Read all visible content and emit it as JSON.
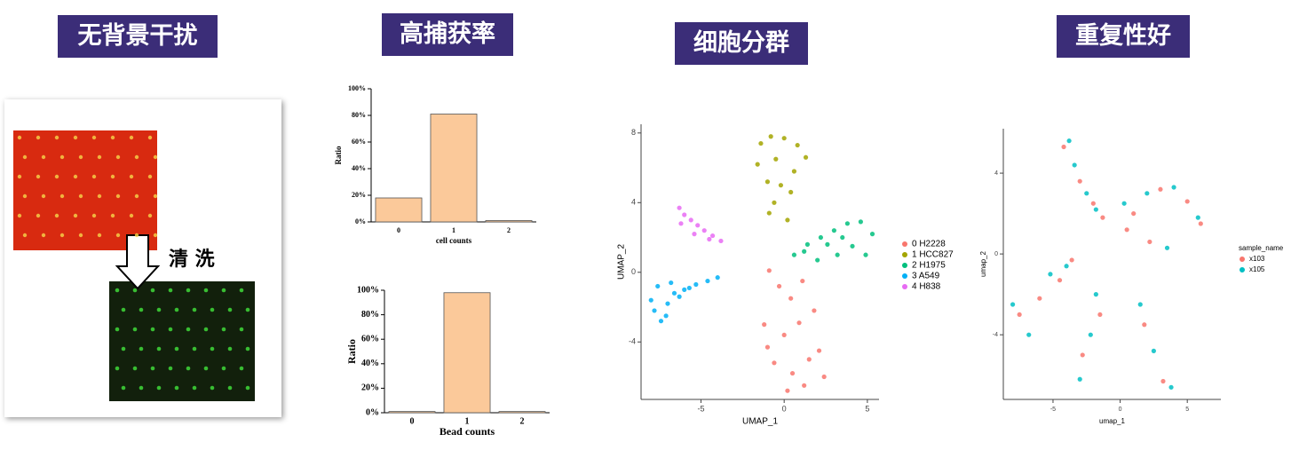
{
  "titles": [
    "无背景干扰",
    "高捕获率",
    "细胞分群",
    "重复性好"
  ],
  "wash_label": "清 洗",
  "chart_data": [
    {
      "type": "bar",
      "xlabel": "cell counts",
      "ylabel": "Ratio",
      "categories": [
        "0",
        "1",
        "2"
      ],
      "values": [
        18,
        81,
        1
      ],
      "color": "#fbc99a",
      "ylim": [
        0,
        100
      ],
      "yticks": [
        {
          "value": 0,
          "label": "0%"
        },
        {
          "value": 20,
          "label": "20%"
        },
        {
          "value": 40,
          "label": "40%"
        },
        {
          "value": 60,
          "label": "60%"
        },
        {
          "value": 80,
          "label": "80%"
        },
        {
          "value": 100,
          "label": "100%"
        }
      ]
    },
    {
      "type": "bar",
      "xlabel": "Bead counts",
      "ylabel": "Ratio",
      "categories": [
        "0",
        "1",
        "2"
      ],
      "values": [
        1,
        98,
        1
      ],
      "color": "#fbc99a",
      "ylim": [
        0,
        100
      ],
      "yticks": [
        {
          "value": 0,
          "label": "0%"
        },
        {
          "value": 20,
          "label": "20%"
        },
        {
          "value": 40,
          "label": "40%"
        },
        {
          "value": 60,
          "label": "60%"
        },
        {
          "value": 80,
          "label": "80%"
        },
        {
          "value": 100,
          "label": "100%"
        }
      ]
    },
    {
      "type": "scatter",
      "xlabel": "UMAP_1",
      "ylabel": "UMAP_2",
      "xlim": [
        -8.6,
        5.7
      ],
      "ylim": [
        -7.3,
        8.5
      ],
      "xticks": [
        -5,
        0,
        5
      ],
      "yticks": [
        -4,
        0,
        4,
        8
      ],
      "series": [
        {
          "name": "0 H2228",
          "color": "#f8766d",
          "x": [
            -0.9,
            -0.3,
            0.4,
            1.1,
            1.8,
            -1.2,
            0.0,
            0.9,
            2.1,
            -0.6,
            0.5,
            1.5,
            2.4,
            0.2,
            -1.0,
            1.2
          ],
          "y": [
            0.1,
            -0.8,
            -1.5,
            -0.5,
            -2.2,
            -3.0,
            -3.6,
            -2.9,
            -4.5,
            -5.2,
            -5.8,
            -5.0,
            -6.0,
            -6.8,
            -4.3,
            -6.5
          ]
        },
        {
          "name": "1 HCC827",
          "color": "#a3a500",
          "x": [
            -1.4,
            -0.8,
            0.0,
            0.8,
            1.3,
            -1.6,
            -0.5,
            0.6,
            -1.0,
            -0.2,
            0.4,
            -0.6,
            -0.9,
            0.2
          ],
          "y": [
            7.4,
            7.8,
            7.7,
            7.3,
            6.6,
            6.2,
            6.5,
            5.8,
            5.2,
            5.0,
            4.6,
            4.0,
            3.4,
            3.0
          ]
        },
        {
          "name": "2 H1975",
          "color": "#00bf7d",
          "x": [
            0.6,
            1.4,
            2.2,
            3.0,
            3.8,
            4.6,
            5.3,
            4.1,
            3.2,
            2.0,
            1.2,
            4.9,
            3.5,
            2.6
          ],
          "y": [
            1.0,
            1.6,
            2.0,
            2.4,
            2.8,
            2.9,
            2.2,
            1.5,
            1.0,
            0.7,
            1.2,
            1.0,
            2.0,
            1.6
          ]
        },
        {
          "name": "3 A549",
          "color": "#00b0f6",
          "x": [
            -8.0,
            -7.6,
            -7.1,
            -6.6,
            -6.0,
            -5.3,
            -4.6,
            -4.0,
            -7.8,
            -7.0,
            -6.3,
            -7.4,
            -5.7,
            -6.8
          ],
          "y": [
            -1.6,
            -0.8,
            -2.5,
            -1.2,
            -1.0,
            -0.7,
            -0.5,
            -0.3,
            -2.2,
            -1.8,
            -1.4,
            -2.8,
            -0.9,
            -0.6
          ]
        },
        {
          "name": "4 H838",
          "color": "#e76bf3",
          "x": [
            -6.3,
            -6.0,
            -5.6,
            -5.2,
            -4.8,
            -4.3,
            -3.8,
            -6.2,
            -5.4,
            -4.5
          ],
          "y": [
            3.7,
            3.3,
            3.0,
            2.7,
            2.4,
            2.1,
            1.8,
            2.8,
            2.2,
            1.9
          ]
        }
      ]
    },
    {
      "type": "scatter",
      "xlabel": "umap_1",
      "ylabel": "umap_2",
      "legend_title": "sample_name",
      "xlim": [
        -8.7,
        7.5
      ],
      "ylim": [
        -7.2,
        6.2
      ],
      "xticks": [
        -5,
        0,
        5
      ],
      "yticks": [
        -4,
        0,
        4
      ],
      "series": [
        {
          "name": "x103",
          "color": "#f8766d",
          "x": [
            -4.2,
            -3.0,
            -2.0,
            -1.3,
            1.0,
            3.0,
            5.0,
            2.2,
            -7.5,
            -6.0,
            -4.5,
            -3.6,
            -2.8,
            -1.5,
            1.8,
            3.2,
            0.5,
            6.0
          ],
          "y": [
            5.3,
            3.6,
            2.5,
            1.8,
            2.0,
            3.2,
            2.6,
            0.6,
            -3.0,
            -2.2,
            -1.3,
            -0.3,
            -5.0,
            -3.0,
            -3.5,
            -6.3,
            1.2,
            1.5
          ]
        },
        {
          "name": "x105",
          "color": "#00bfc4",
          "x": [
            -3.8,
            -3.4,
            -2.5,
            -1.8,
            0.3,
            2.0,
            4.0,
            5.8,
            3.5,
            -8.0,
            -6.8,
            -5.2,
            -4.0,
            -3.0,
            -2.2,
            -1.8,
            1.5,
            2.5,
            3.8
          ],
          "y": [
            5.6,
            4.4,
            3.0,
            2.2,
            2.5,
            3.0,
            3.3,
            1.8,
            0.3,
            -2.5,
            -4.0,
            -1.0,
            -0.6,
            -6.2,
            -4.0,
            -2.0,
            -2.5,
            -4.8,
            -6.6
          ]
        }
      ]
    }
  ]
}
